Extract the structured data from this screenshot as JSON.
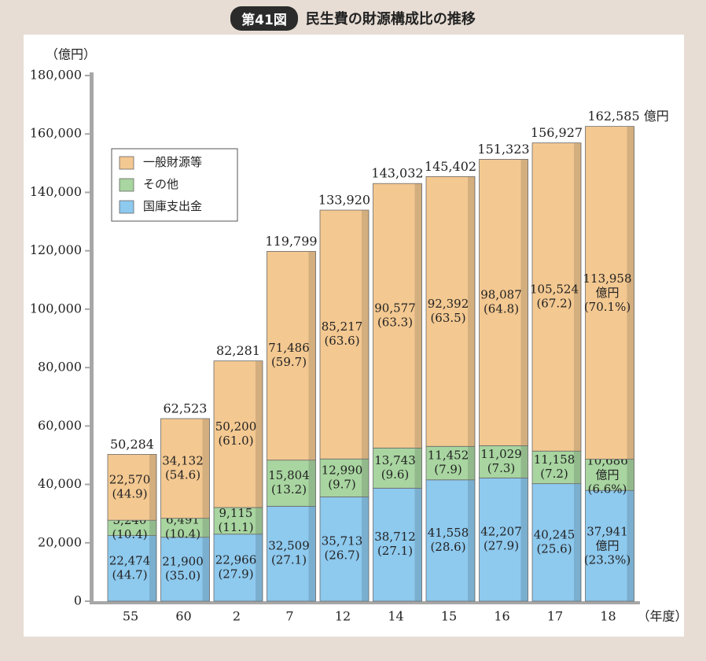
{
  "header": {
    "badge": "第41図",
    "title": "民生費の財源構成比の推移"
  },
  "colors": {
    "general": "#f3c891",
    "other": "#a8d5a0",
    "national": "#8ec9ee",
    "axis": "#a7a7a7",
    "background": "#e7ddd4"
  },
  "chart_data": {
    "type": "bar",
    "stacked": true,
    "title": "民生費の財源構成比の推移",
    "ylabel": "（億円）",
    "xlabel": "（年度）",
    "ylim": [
      0,
      180000
    ],
    "yticks": [
      "0",
      "20,000",
      "40,000",
      "60,000",
      "80,000",
      "100,000",
      "120,000",
      "140,000",
      "160,000",
      "180,000"
    ],
    "categories": [
      "55",
      "60",
      "2",
      "7",
      "12",
      "14",
      "15",
      "16",
      "17",
      "18"
    ],
    "legend": [
      "一般財源等",
      "その他",
      "国庫支出金"
    ],
    "legend_position": "top-left",
    "totals": [
      50284,
      62523,
      82281,
      119799,
      133920,
      143032,
      145402,
      151323,
      156927,
      162585
    ],
    "total_labels": [
      "50,284",
      "62,523",
      "82,281",
      "119,799",
      "133,920",
      "143,032",
      "145,402",
      "151,323",
      "156,927",
      "162,585"
    ],
    "total_unit_last": "億円",
    "series": [
      {
        "name": "国庫支出金",
        "values": [
          22474,
          21900,
          22966,
          32509,
          35713,
          38712,
          41558,
          42207,
          40245,
          37941
        ],
        "labels": [
          "22,474",
          "21,900",
          "22,966",
          "32,509",
          "35,713",
          "38,712",
          "41,558",
          "42,207",
          "40,245",
          "37,941"
        ],
        "pct_labels": [
          "(44.7)",
          "(35.0)",
          "(27.9)",
          "(27.1)",
          "(26.7)",
          "(27.1)",
          "(28.6)",
          "(27.9)",
          "(25.6)",
          "(23.3%)"
        ]
      },
      {
        "name": "その他",
        "values": [
          5240,
          6491,
          9115,
          15804,
          12990,
          13743,
          11452,
          11029,
          11158,
          10686
        ],
        "labels": [
          "5,240",
          "6,491",
          "9,115",
          "15,804",
          "12,990",
          "13,743",
          "11,452",
          "11,029",
          "11,158",
          "10,686"
        ],
        "pct_labels": [
          "(10.4)",
          "(10.4)",
          "(11.1)",
          "(13.2)",
          "(9.7)",
          "(9.6)",
          "(7.9)",
          "(7.3)",
          "(7.2)",
          "(6.6%)"
        ]
      },
      {
        "name": "一般財源等",
        "values": [
          22570,
          34132,
          50200,
          71486,
          85217,
          90577,
          92392,
          98087,
          105524,
          113958
        ],
        "labels": [
          "22,570",
          "34,132",
          "50,200",
          "71,486",
          "85,217",
          "90,577",
          "92,392",
          "98,087",
          "105,524",
          "113,958"
        ],
        "pct_labels": [
          "(44.9)",
          "(54.6)",
          "(61.0)",
          "(59.7)",
          "(63.6)",
          "(63.3)",
          "(63.5)",
          "(64.8)",
          "(67.2)",
          "(70.1%)"
        ]
      }
    ],
    "last_bar_unit": "億円"
  }
}
